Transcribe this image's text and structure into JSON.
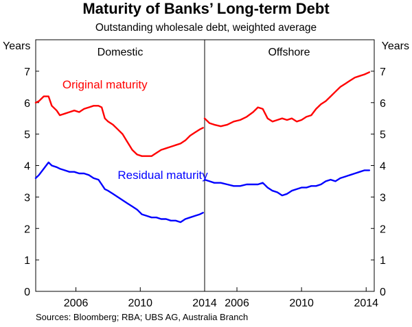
{
  "title": "Maturity of Banks’ Long-term Debt",
  "subtitle": "Outstanding wholesale debt, weighted average",
  "source": "Sources: Bloomberg; RBA; UBS AG, Australia Branch",
  "y_unit_left": "Years",
  "y_unit_right": "Years",
  "colors": {
    "original": "#ff0000",
    "residual": "#0000ff",
    "frame": "#000000"
  },
  "chart_data": [
    {
      "type": "line",
      "panel": "Domestic",
      "title": "Domestic",
      "xlim": [
        2003.5,
        2014.0
      ],
      "x_ticks": [
        2006,
        2010,
        2014
      ],
      "ylim": [
        0,
        8
      ],
      "y_ticks": [
        0,
        1,
        2,
        3,
        4,
        5,
        6,
        7
      ],
      "y_axis": "left",
      "grid": false,
      "series": [
        {
          "name": "Original maturity",
          "color": "#ff0000",
          "x": [
            2003.5,
            2003.7,
            2004.0,
            2004.3,
            2004.5,
            2004.8,
            2005.0,
            2005.3,
            2005.6,
            2005.9,
            2006.2,
            2006.5,
            2006.8,
            2007.1,
            2007.4,
            2007.6,
            2007.8,
            2008.0,
            2008.3,
            2008.6,
            2008.9,
            2009.2,
            2009.5,
            2009.8,
            2010.1,
            2010.4,
            2010.7,
            2011.0,
            2011.3,
            2011.6,
            2011.9,
            2012.2,
            2012.5,
            2012.8,
            2013.1,
            2013.4,
            2013.7,
            2013.9
          ],
          "values": [
            6.0,
            6.05,
            6.2,
            6.2,
            5.9,
            5.75,
            5.6,
            5.65,
            5.7,
            5.75,
            5.7,
            5.8,
            5.85,
            5.9,
            5.9,
            5.85,
            5.5,
            5.4,
            5.3,
            5.15,
            5.0,
            4.75,
            4.5,
            4.35,
            4.3,
            4.3,
            4.3,
            4.4,
            4.5,
            4.55,
            4.6,
            4.65,
            4.7,
            4.8,
            4.95,
            5.05,
            5.15,
            5.2
          ]
        },
        {
          "name": "Residual maturity",
          "color": "#0000ff",
          "x": [
            2003.5,
            2003.7,
            2004.0,
            2004.3,
            2004.5,
            2004.8,
            2005.0,
            2005.3,
            2005.6,
            2005.9,
            2006.2,
            2006.5,
            2006.8,
            2007.1,
            2007.4,
            2007.6,
            2007.8,
            2008.0,
            2008.3,
            2008.6,
            2008.9,
            2009.2,
            2009.5,
            2009.8,
            2010.1,
            2010.4,
            2010.7,
            2011.0,
            2011.3,
            2011.6,
            2011.9,
            2012.2,
            2012.5,
            2012.8,
            2013.1,
            2013.4,
            2013.7,
            2013.9
          ],
          "values": [
            3.6,
            3.7,
            3.9,
            4.1,
            4.0,
            3.95,
            3.9,
            3.85,
            3.8,
            3.8,
            3.75,
            3.75,
            3.7,
            3.6,
            3.55,
            3.4,
            3.25,
            3.2,
            3.1,
            3.0,
            2.9,
            2.8,
            2.7,
            2.6,
            2.45,
            2.4,
            2.35,
            2.35,
            2.3,
            2.3,
            2.25,
            2.25,
            2.2,
            2.3,
            2.35,
            2.4,
            2.45,
            2.5
          ]
        }
      ],
      "annotations": [
        {
          "text": "Original maturity",
          "series": "Original maturity",
          "x": 2007.8,
          "y": 6.45
        },
        {
          "text": "Residual maturity",
          "series": "Residual maturity",
          "x": 2011.4,
          "y": 3.58
        }
      ]
    },
    {
      "type": "line",
      "panel": "Offshore",
      "title": "Offshore",
      "xlim": [
        2004.0,
        2014.5
      ],
      "x_ticks": [
        2006,
        2010,
        2014
      ],
      "ylim": [
        0,
        8
      ],
      "y_ticks": [
        0,
        1,
        2,
        3,
        4,
        5,
        6,
        7
      ],
      "y_axis": "right",
      "grid": false,
      "series": [
        {
          "name": "Original maturity",
          "color": "#ff0000",
          "x": [
            2004.0,
            2004.3,
            2004.6,
            2005.0,
            2005.4,
            2005.8,
            2006.2,
            2006.6,
            2007.0,
            2007.3,
            2007.6,
            2007.9,
            2008.2,
            2008.5,
            2008.8,
            2009.1,
            2009.4,
            2009.7,
            2010.0,
            2010.3,
            2010.6,
            2010.9,
            2011.2,
            2011.5,
            2011.8,
            2012.1,
            2012.4,
            2012.7,
            2013.0,
            2013.3,
            2013.6,
            2013.9,
            2014.2
          ],
          "values": [
            5.5,
            5.35,
            5.3,
            5.25,
            5.3,
            5.4,
            5.45,
            5.55,
            5.7,
            5.85,
            5.8,
            5.5,
            5.4,
            5.45,
            5.5,
            5.45,
            5.5,
            5.4,
            5.45,
            5.55,
            5.6,
            5.8,
            5.95,
            6.05,
            6.2,
            6.35,
            6.5,
            6.6,
            6.7,
            6.8,
            6.85,
            6.9,
            6.97
          ]
        },
        {
          "name": "Residual maturity",
          "color": "#0000ff",
          "x": [
            2004.0,
            2004.3,
            2004.6,
            2005.0,
            2005.4,
            2005.8,
            2006.2,
            2006.6,
            2007.0,
            2007.3,
            2007.6,
            2007.9,
            2008.2,
            2008.5,
            2008.8,
            2009.1,
            2009.4,
            2009.7,
            2010.0,
            2010.3,
            2010.6,
            2010.9,
            2011.2,
            2011.5,
            2011.8,
            2012.1,
            2012.4,
            2012.7,
            2013.0,
            2013.3,
            2013.6,
            2013.9,
            2014.2
          ],
          "values": [
            3.55,
            3.5,
            3.45,
            3.45,
            3.4,
            3.35,
            3.35,
            3.4,
            3.4,
            3.4,
            3.45,
            3.3,
            3.2,
            3.15,
            3.05,
            3.1,
            3.2,
            3.25,
            3.3,
            3.3,
            3.35,
            3.35,
            3.4,
            3.5,
            3.55,
            3.5,
            3.6,
            3.65,
            3.7,
            3.75,
            3.8,
            3.85,
            3.85
          ]
        }
      ]
    }
  ]
}
